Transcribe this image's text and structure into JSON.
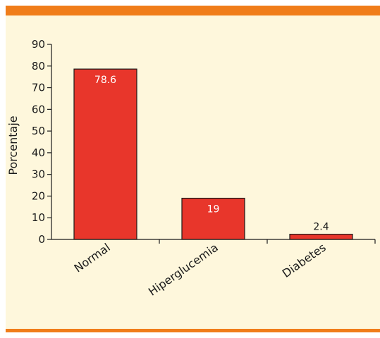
{
  "colors": {
    "accent_bar": "#F07D1A",
    "panel_bg": "#FEF7DC",
    "bar_fill": "#E8362B",
    "bar_stroke": "#1a1a1a"
  },
  "chart_data": {
    "type": "bar",
    "categories": [
      "Normal",
      "Hiperglucemia",
      "Diabetes"
    ],
    "values": [
      78.6,
      19,
      2.4
    ],
    "data_labels": [
      "78.6",
      "19",
      "2.4"
    ],
    "title": "",
    "xlabel": "",
    "ylabel": "Porcentaje",
    "ylim": [
      0,
      90
    ],
    "yticks": [
      0,
      10,
      20,
      30,
      40,
      50,
      60,
      70,
      80,
      90
    ],
    "grid": false,
    "legend": "none"
  }
}
